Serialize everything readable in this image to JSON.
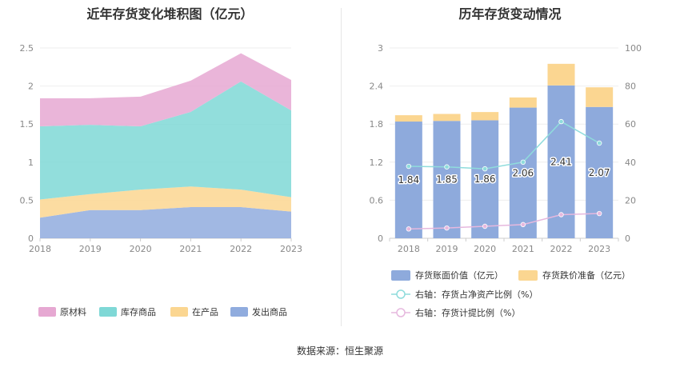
{
  "source_text": "数据来源：恒生聚源",
  "chart_data": [
    {
      "type": "area",
      "title": "近年存货变化堆积图（亿元）",
      "x": [
        "2018",
        "2019",
        "2020",
        "2021",
        "2022",
        "2023"
      ],
      "ylim": [
        0,
        2.5
      ],
      "yticks": [
        "0",
        "0.5",
        "1",
        "1.5",
        "2",
        "2.5"
      ],
      "stack_order": [
        "发出商品",
        "在产品",
        "库存商品",
        "原材料"
      ],
      "series": [
        {
          "name": "原材料",
          "color": "#e6a8d2",
          "values": [
            0.37,
            0.35,
            0.39,
            0.41,
            0.37,
            0.4
          ]
        },
        {
          "name": "库存商品",
          "color": "#7fd8d6",
          "values": [
            0.96,
            0.91,
            0.83,
            0.98,
            1.42,
            1.14
          ]
        },
        {
          "name": "在产品",
          "color": "#fbd691",
          "values": [
            0.24,
            0.21,
            0.27,
            0.27,
            0.23,
            0.19
          ]
        },
        {
          "name": "发出商品",
          "color": "#90acde",
          "values": [
            0.27,
            0.37,
            0.37,
            0.41,
            0.41,
            0.35
          ]
        }
      ],
      "legend_position": "bottom",
      "grid": true
    },
    {
      "type": "bar",
      "title": "历年存货变动情况",
      "categories": [
        "2018",
        "2019",
        "2020",
        "2021",
        "2022",
        "2023"
      ],
      "ylim_left": [
        0,
        3
      ],
      "yticks_left": [
        "0",
        "0.6",
        "1.2",
        "1.8",
        "2.4",
        "3"
      ],
      "ylim_right": [
        0,
        100
      ],
      "yticks_right": [
        "0",
        "20",
        "40",
        "60",
        "80",
        "100"
      ],
      "bar_series": [
        {
          "name": "存货账面价值（亿元）",
          "color": "#8eaadc",
          "values": [
            1.84,
            1.85,
            1.86,
            2.06,
            2.41,
            2.07
          ],
          "labels": [
            "1.84",
            "1.85",
            "1.86",
            "2.06",
            "2.41",
            "2.07"
          ]
        },
        {
          "name": "存货跌价准备（亿元）",
          "color": "#fbd691",
          "values": [
            0.1,
            0.11,
            0.13,
            0.16,
            0.34,
            0.31
          ]
        }
      ],
      "line_series": [
        {
          "name": "右轴：存货占净资产比例（%）",
          "color": "#8fdcdc",
          "values": [
            37.8,
            37.5,
            36.5,
            40.0,
            61.3,
            50.0
          ]
        },
        {
          "name": "右轴：存货计提比例（%）",
          "color": "#e6b8de",
          "values": [
            4.9,
            5.4,
            6.3,
            7.2,
            12.4,
            13.0
          ]
        }
      ],
      "legend_position": "bottom",
      "grid": true
    }
  ]
}
